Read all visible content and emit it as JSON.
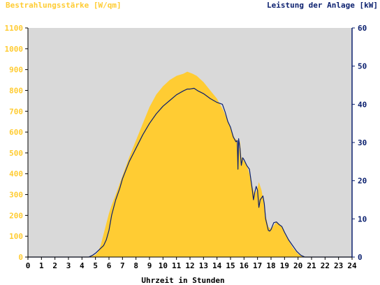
{
  "chart_data": {
    "type": "area",
    "left_axis_title": "Bestrahlungsstärke [W/qm]",
    "right_axis_title": "Leistung der Anlage [kW]",
    "xlabel": "Uhrzeit in Stunden",
    "xlim": [
      0,
      24
    ],
    "ylim_left": [
      0,
      1100
    ],
    "ylim_right": [
      0,
      60
    ],
    "x_ticks": [
      "0",
      "1",
      "2",
      "3",
      "4",
      "5",
      "6",
      "7",
      "8",
      "9",
      "10",
      "11",
      "12",
      "13",
      "14",
      "15",
      "16",
      "17",
      "18",
      "19",
      "20",
      "21",
      "22",
      "23",
      "24"
    ],
    "y_left_ticks": [
      "0",
      "100",
      "200",
      "300",
      "400",
      "500",
      "600",
      "700",
      "800",
      "900",
      "1000",
      "1100"
    ],
    "y_right_ticks": [
      "0",
      "10",
      "20",
      "30",
      "40",
      "50",
      "60"
    ],
    "grid": false,
    "colors": {
      "plot_background": "#d9d9d9",
      "irradiance_fill": "#ffcc33",
      "power_line": "#0a1f6e",
      "left_axis_text": "#ffcc33",
      "right_axis_text": "#0a1f6e"
    },
    "series": [
      {
        "axis": "left",
        "style": "area",
        "x": [
          0,
          4.5,
          5.0,
          5.2,
          5.4,
          5.6,
          5.8,
          6.0,
          6.2,
          6.5,
          7.0,
          7.5,
          8.0,
          8.5,
          9.0,
          9.5,
          10.0,
          10.5,
          11.0,
          11.5,
          11.8,
          12.0,
          12.2,
          12.5,
          13.0,
          13.5,
          14.0,
          14.5,
          15.0,
          15.3,
          15.5,
          15.6,
          15.7,
          15.8,
          16.0,
          16.2,
          16.4,
          16.6,
          16.8,
          17.0,
          17.1,
          17.3,
          17.5,
          17.6,
          17.8,
          18.0,
          18.2,
          18.4,
          18.6,
          18.8,
          19.0,
          19.3,
          19.6,
          20.0,
          20.3,
          20.6,
          21.0,
          24
        ],
        "y": [
          0,
          0,
          10,
          25,
          60,
          110,
          160,
          210,
          250,
          300,
          390,
          480,
          560,
          640,
          720,
          780,
          820,
          850,
          870,
          880,
          890,
          885,
          880,
          870,
          840,
          800,
          760,
          700,
          620,
          570,
          560,
          500,
          560,
          480,
          460,
          440,
          400,
          340,
          300,
          330,
          360,
          320,
          250,
          200,
          145,
          135,
          150,
          170,
          160,
          145,
          115,
          80,
          45,
          15,
          3,
          0,
          0,
          0
        ]
      },
      {
        "axis": "right",
        "style": "line",
        "x": [
          0,
          4.5,
          4.8,
          5.0,
          5.3,
          5.6,
          5.8,
          6.0,
          6.2,
          6.5,
          6.8,
          7.0,
          7.5,
          8.0,
          8.5,
          9.0,
          9.5,
          10.0,
          10.5,
          11.0,
          11.5,
          11.8,
          12.0,
          12.3,
          12.6,
          13.0,
          13.5,
          14.0,
          14.4,
          14.6,
          14.8,
          15.0,
          15.2,
          15.4,
          15.5,
          15.55,
          15.6,
          15.7,
          15.8,
          15.9,
          16.0,
          16.2,
          16.4,
          16.6,
          16.7,
          16.8,
          16.9,
          17.0,
          17.1,
          17.2,
          17.4,
          17.5,
          17.6,
          17.8,
          17.9,
          18.0,
          18.2,
          18.4,
          18.6,
          18.8,
          19.0,
          19.3,
          19.6,
          19.9,
          20.2,
          20.5,
          24
        ],
        "y": [
          0,
          0,
          0.5,
          1,
          2,
          3,
          4.5,
          7,
          11,
          15,
          18,
          20.5,
          25,
          28.5,
          32,
          35,
          37.5,
          39.5,
          41,
          42.5,
          43.5,
          44,
          44,
          44.2,
          43.5,
          42.8,
          41.5,
          40.5,
          40,
          38,
          35.5,
          34,
          31.5,
          30.2,
          30.5,
          23,
          31,
          28.5,
          24,
          26,
          25.5,
          24,
          23,
          18,
          15,
          17,
          18.5,
          17.5,
          13,
          15,
          16,
          14,
          10,
          7,
          6.8,
          7.2,
          9,
          9.2,
          8.5,
          8,
          6.5,
          4.5,
          3,
          1.5,
          0.5,
          0,
          0
        ]
      }
    ]
  }
}
